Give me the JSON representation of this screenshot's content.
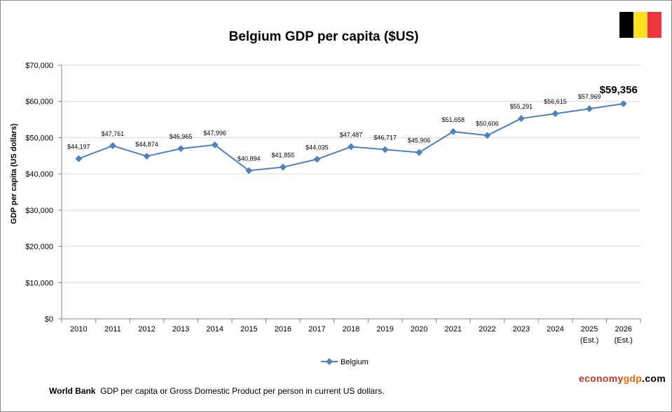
{
  "chart_data": {
    "type": "line",
    "title": "Belgium GDP per capita ($US)",
    "ylabel": "GDP per capita (US dollars)",
    "xlabel": "",
    "ylim": [
      0,
      70000
    ],
    "yticks": [
      "$0",
      "$10,000",
      "$20,000",
      "$30,000",
      "$40,000",
      "$50,000",
      "$60,000",
      "$70,000"
    ],
    "categories": [
      "2010",
      "2011",
      "2012",
      "2013",
      "2014",
      "2015",
      "2016",
      "2017",
      "2018",
      "2019",
      "2020",
      "2021",
      "2022",
      "2023",
      "2024",
      "2025",
      "2026"
    ],
    "category_sublabels": [
      "",
      "",
      "",
      "",
      "",
      "",
      "",
      "",
      "",
      "",
      "",
      "",
      "",
      "",
      "",
      "(Est.)",
      "(Est.)"
    ],
    "series": [
      {
        "name": "Belgium",
        "color": "#4f81bd",
        "values": [
          44197,
          47761,
          44874,
          46965,
          47996,
          40894,
          41855,
          44035,
          47487,
          46717,
          45906,
          51658,
          50606,
          55291,
          56615,
          57969,
          59356
        ],
        "labels": [
          "$44,197",
          "$47,761",
          "$44,874",
          "$46,965",
          "$47,996",
          "$40,894",
          "$41,855",
          "$44,035",
          "$47,487",
          "$46,717",
          "$45,906",
          "$51,658",
          "$50,606",
          "$55,291",
          "$56,615",
          "$57,969",
          "$59,356"
        ]
      }
    ],
    "highlighted_label": "last",
    "grid": true,
    "legend": "bottom"
  },
  "footnote": {
    "source": "World Bank",
    "text": "GDP per capita or Gross Domestic Product per person in current US dollars."
  },
  "brand": {
    "part1": "economy",
    "part2": "gdp",
    "part3": ".com",
    "color1": "#c0392b",
    "color2": "#e36c09",
    "color3": "#000000"
  },
  "flag": {
    "colors": [
      "#000000",
      "#fddf21",
      "#ef3340"
    ]
  }
}
